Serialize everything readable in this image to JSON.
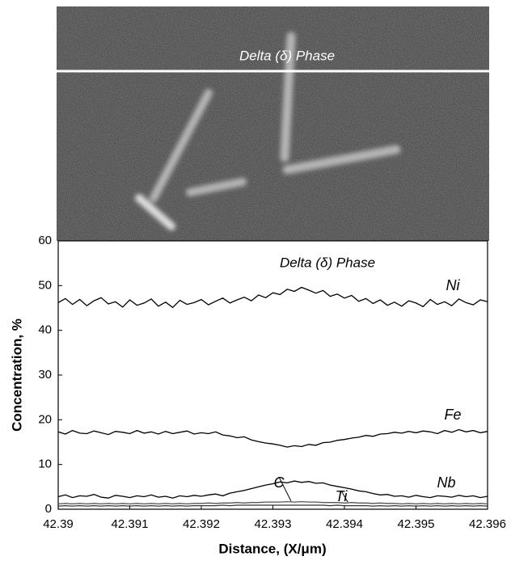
{
  "micrograph": {
    "caption": "Delta (δ) Phase"
  },
  "chart_data": {
    "type": "line",
    "title": "Delta (δ) Phase",
    "xlabel": "Distance, (X/μm)",
    "ylabel": "Concentration, %",
    "x": [
      42.39,
      42.3901,
      42.3902,
      42.3903,
      42.3904,
      42.3905,
      42.3906,
      42.3907,
      42.3908,
      42.3909,
      42.391,
      42.3911,
      42.3912,
      42.3913,
      42.3914,
      42.3915,
      42.3916,
      42.3917,
      42.3918,
      42.3919,
      42.392,
      42.3921,
      42.3922,
      42.3923,
      42.3924,
      42.3925,
      42.3926,
      42.3927,
      42.3928,
      42.3929,
      42.393,
      42.3931,
      42.3932,
      42.3933,
      42.3934,
      42.3935,
      42.3936,
      42.3937,
      42.3938,
      42.3939,
      42.394,
      42.3941,
      42.3942,
      42.3943,
      42.3944,
      42.3945,
      42.3946,
      42.3947,
      42.3948,
      42.3949,
      42.395,
      42.3951,
      42.3952,
      42.3953,
      42.3954,
      42.3955,
      42.3956,
      42.3957,
      42.3958,
      42.3959,
      42.396
    ],
    "series": [
      {
        "name": "Ni",
        "color": "#000000",
        "values": [
          46.2,
          47.1,
          45.8,
          46.9,
          45.5,
          46.6,
          47.3,
          45.9,
          46.4,
          45.2,
          46.8,
          45.6,
          46.1,
          47.0,
          45.4,
          46.3,
          45.1,
          46.7,
          45.8,
          46.2,
          46.9,
          45.7,
          46.5,
          47.2,
          46.1,
          46.8,
          47.4,
          46.6,
          47.9,
          47.3,
          48.4,
          48.0,
          49.2,
          48.7,
          49.6,
          49.0,
          48.3,
          48.9,
          47.6,
          48.1,
          47.2,
          47.8,
          46.5,
          47.1,
          46.0,
          46.8,
          45.6,
          46.3,
          45.4,
          46.6,
          46.1,
          45.3,
          46.9,
          45.8,
          46.4,
          45.5,
          47.0,
          46.2,
          45.7,
          46.8,
          46.4
        ]
      },
      {
        "name": "Fe",
        "color": "#000000",
        "values": [
          17.3,
          16.8,
          17.6,
          17.0,
          16.9,
          17.5,
          17.1,
          16.7,
          17.4,
          17.2,
          16.9,
          17.6,
          17.0,
          17.3,
          16.8,
          17.4,
          16.9,
          17.2,
          17.5,
          16.8,
          17.1,
          16.9,
          17.3,
          16.6,
          16.4,
          16.0,
          16.2,
          15.5,
          15.1,
          14.8,
          14.6,
          14.3,
          13.9,
          14.2,
          14.0,
          14.5,
          14.3,
          14.9,
          15.0,
          15.4,
          15.6,
          15.9,
          16.1,
          16.5,
          16.3,
          16.8,
          16.9,
          17.2,
          17.0,
          17.4,
          17.1,
          17.5,
          17.3,
          16.9,
          17.6,
          17.2,
          17.8,
          17.3,
          17.6,
          17.1,
          17.4
        ]
      },
      {
        "name": "Nb",
        "color": "#000000",
        "values": [
          2.8,
          3.2,
          2.6,
          3.0,
          2.9,
          3.3,
          2.7,
          2.5,
          3.1,
          2.9,
          2.6,
          3.0,
          2.8,
          3.2,
          2.7,
          2.9,
          2.5,
          3.0,
          2.8,
          3.1,
          2.9,
          3.2,
          3.4,
          3.0,
          3.6,
          3.9,
          4.2,
          4.6,
          5.0,
          5.4,
          5.7,
          6.1,
          5.9,
          6.3,
          6.0,
          6.2,
          5.8,
          5.9,
          5.4,
          5.1,
          4.8,
          4.5,
          4.1,
          3.9,
          3.5,
          3.2,
          3.3,
          2.9,
          3.0,
          2.7,
          3.1,
          2.8,
          2.6,
          3.0,
          2.9,
          2.7,
          3.1,
          2.8,
          3.0,
          2.6,
          2.9
        ]
      },
      {
        "name": "Ti",
        "color": "#555555",
        "values": [
          1.2,
          1.3,
          1.2,
          1.3,
          1.2,
          1.3,
          1.2,
          1.3,
          1.2,
          1.3,
          1.2,
          1.3,
          1.2,
          1.3,
          1.2,
          1.3,
          1.2,
          1.3,
          1.2,
          1.3,
          1.3,
          1.4,
          1.3,
          1.4,
          1.4,
          1.5,
          1.4,
          1.5,
          1.5,
          1.6,
          1.6,
          1.6,
          1.7,
          1.6,
          1.7,
          1.6,
          1.6,
          1.5,
          1.5,
          1.5,
          1.4,
          1.5,
          1.4,
          1.4,
          1.3,
          1.4,
          1.3,
          1.3,
          1.2,
          1.3,
          1.2,
          1.3,
          1.2,
          1.3,
          1.2,
          1.3,
          1.2,
          1.3,
          1.2,
          1.3,
          1.2
        ]
      },
      {
        "name": "C",
        "color": "#333333",
        "values": [
          0.7,
          0.8,
          0.7,
          0.8,
          0.7,
          0.8,
          0.7,
          0.8,
          0.7,
          0.8,
          0.7,
          0.8,
          0.7,
          0.8,
          0.7,
          0.8,
          0.7,
          0.8,
          0.7,
          0.8,
          0.8,
          0.8,
          0.8,
          0.9,
          0.8,
          0.9,
          0.9,
          0.9,
          0.9,
          0.9,
          0.9,
          0.9,
          0.9,
          0.9,
          0.9,
          0.9,
          0.9,
          0.9,
          0.8,
          0.9,
          0.8,
          0.8,
          0.8,
          0.8,
          0.7,
          0.8,
          0.7,
          0.8,
          0.7,
          0.8,
          0.7,
          0.8,
          0.7,
          0.8,
          0.7,
          0.8,
          0.7,
          0.8,
          0.7,
          0.8,
          0.7
        ]
      }
    ],
    "xlim": [
      42.39,
      42.396
    ],
    "xticks": [
      42.39,
      42.391,
      42.392,
      42.393,
      42.394,
      42.395,
      42.396
    ],
    "ylim": [
      0,
      60
    ],
    "yticks": [
      0,
      10,
      20,
      30,
      40,
      50,
      60
    ],
    "grid": false
  }
}
